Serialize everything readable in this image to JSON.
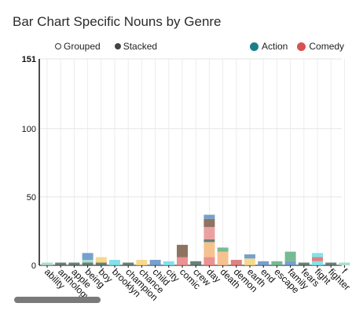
{
  "title": "Bar Chart Specific Nouns by Genre",
  "mode": {
    "grouped_label": "Grouped",
    "stacked_label": "Stacked",
    "selected": "stacked"
  },
  "legend": [
    {
      "label": "Action",
      "color": "#1b7f8a"
    },
    {
      "label": "Comedy",
      "color": "#d6534f"
    }
  ],
  "chart_data": {
    "type": "bar",
    "stacked": true,
    "title": "Bar Chart Specific Nouns by Genre",
    "xlabel": "",
    "ylabel": "",
    "ylim": [
      0,
      151
    ],
    "yticks": [
      0,
      50,
      100,
      151
    ],
    "grid": true,
    "categories": [
      "ability",
      "anthology",
      "apple",
      "being",
      "boy",
      "brooklyn",
      "champion",
      "chance",
      "child",
      "city",
      "comic",
      "crew",
      "day",
      "death",
      "demon",
      "earth",
      "end",
      "escape",
      "family",
      "fears",
      "fight",
      "fighter",
      "f"
    ],
    "segments": [
      [
        {
          "value": 2,
          "color": "#9fd8c4"
        }
      ],
      [
        {
          "value": 2,
          "color": "#4d6b60"
        }
      ],
      [
        {
          "value": 2,
          "color": "#4d6b60"
        }
      ],
      [
        {
          "value": 2,
          "color": "#4d6b60"
        },
        {
          "value": 2,
          "color": "#9fd8c4"
        },
        {
          "value": 5,
          "color": "#5e8fc4"
        }
      ],
      [
        {
          "value": 2,
          "color": "#4d6b60"
        },
        {
          "value": 4,
          "color": "#f5d27a"
        }
      ],
      [
        {
          "value": 4,
          "color": "#6fdce6"
        }
      ],
      [
        {
          "value": 2,
          "color": "#4d6b60"
        }
      ],
      [
        {
          "value": 4,
          "color": "#f5d27a"
        }
      ],
      [
        {
          "value": 4,
          "color": "#5e8fc4"
        }
      ],
      [
        {
          "value": 3,
          "color": "#6fdce6"
        }
      ],
      [
        {
          "value": 6,
          "color": "#e77f7f"
        },
        {
          "value": 9,
          "color": "#7a5a45"
        }
      ],
      [
        {
          "value": 3,
          "color": "#4d6b60"
        }
      ],
      [
        {
          "value": 6,
          "color": "#e77f7f"
        },
        {
          "value": 11,
          "color": "#f5b77d"
        },
        {
          "value": 2,
          "color": "#4d6b60"
        },
        {
          "value": 9,
          "color": "#e79090"
        },
        {
          "value": 6,
          "color": "#7a5a45"
        },
        {
          "value": 3,
          "color": "#5e8fc4"
        }
      ],
      [
        {
          "value": 10,
          "color": "#f5b77d"
        },
        {
          "value": 3,
          "color": "#5fae80"
        }
      ],
      [
        {
          "value": 4,
          "color": "#d86b6b"
        }
      ],
      [
        {
          "value": 5,
          "color": "#f5d27a"
        },
        {
          "value": 3,
          "color": "#5e8fc4"
        }
      ],
      [
        {
          "value": 3,
          "color": "#5e8fc4"
        }
      ],
      [
        {
          "value": 3,
          "color": "#5fae80"
        }
      ],
      [
        {
          "value": 3,
          "color": "#5e8fc4"
        },
        {
          "value": 7,
          "color": "#5fae80"
        }
      ],
      [
        {
          "value": 2,
          "color": "#4d6b60"
        }
      ],
      [
        {
          "value": 3,
          "color": "#6fdce6"
        },
        {
          "value": 3,
          "color": "#d86b6b"
        },
        {
          "value": 3,
          "color": "#6fdce6"
        }
      ],
      [
        {
          "value": 2,
          "color": "#4d6b60"
        }
      ],
      [
        {
          "value": 2,
          "color": "#9fd8c4"
        }
      ]
    ]
  }
}
